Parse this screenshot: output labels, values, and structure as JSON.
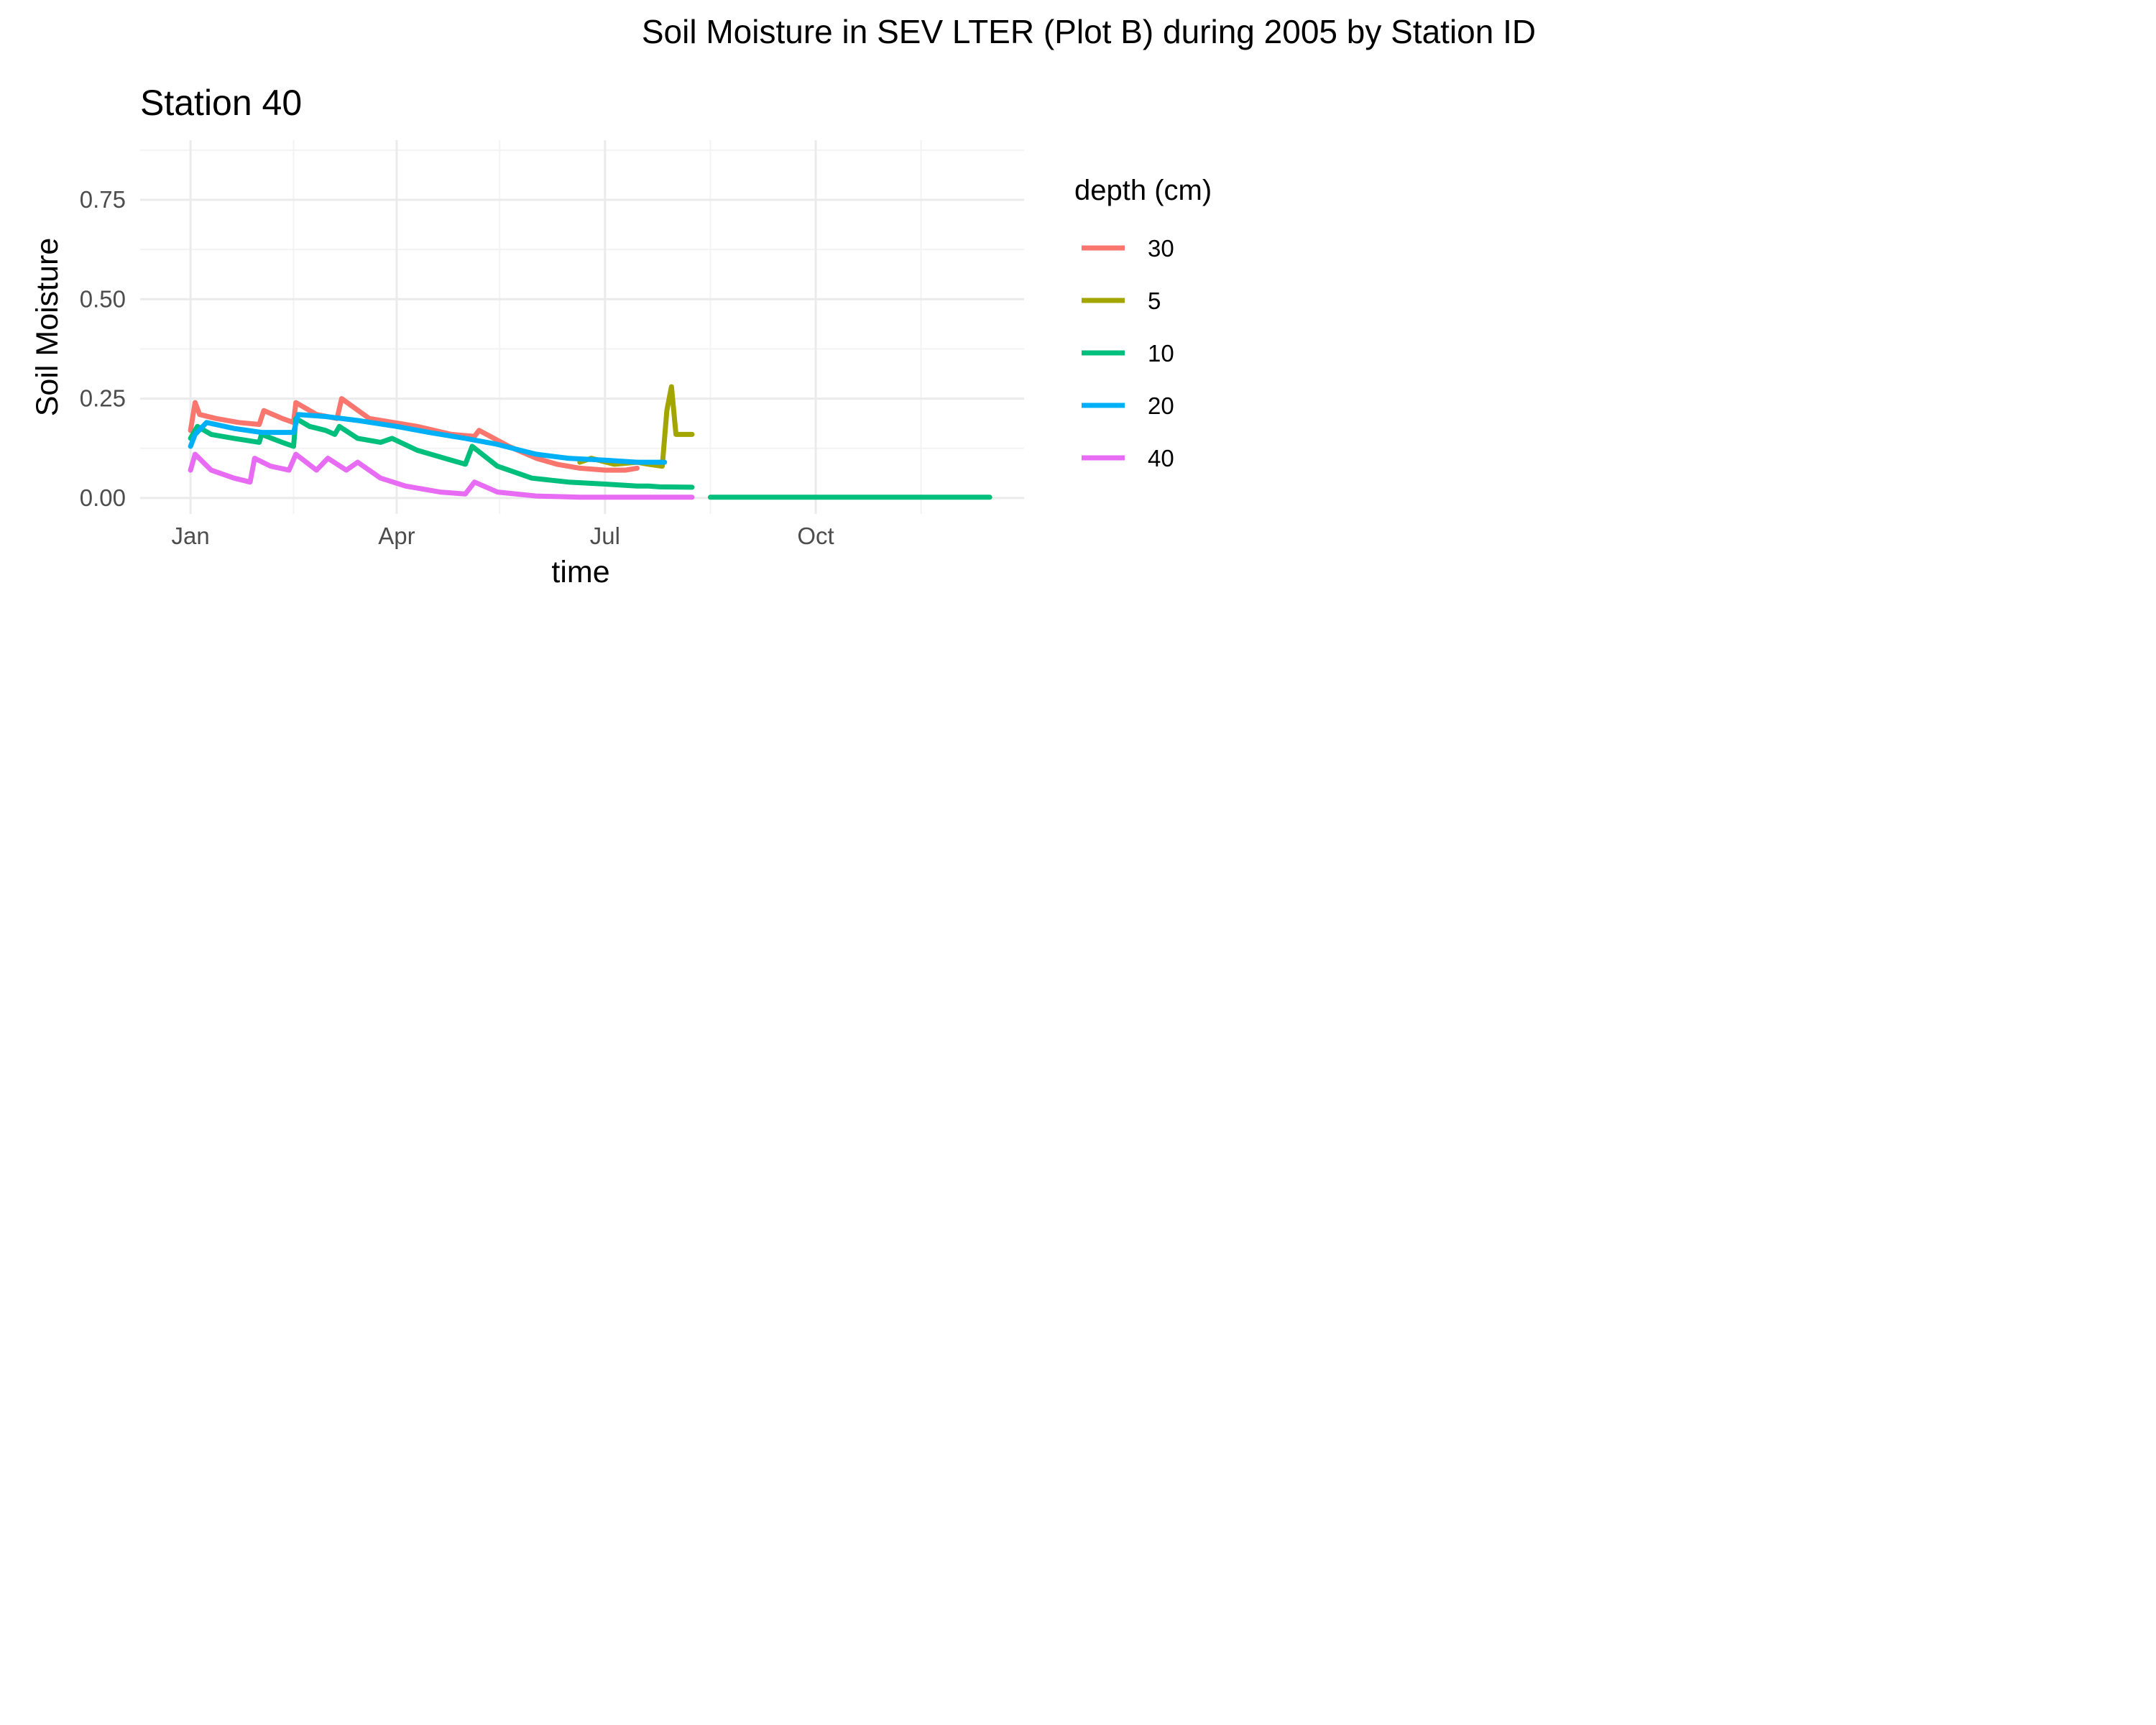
{
  "chart_data": {
    "type": "line",
    "title": "Soil Moisture in SEV LTER (Plot B) during 2005 by Station ID",
    "panel_title": "Station  40",
    "xlabel": "time",
    "ylabel": "Soil Moisture",
    "xlim": [
      "2004-12-10",
      "2005-12-31"
    ],
    "ylim": [
      -0.04,
      0.9
    ],
    "x_ticks": [
      {
        "label": "Jan",
        "date": "2005-01-01"
      },
      {
        "label": "Apr",
        "date": "2005-04-01"
      },
      {
        "label": "Jul",
        "date": "2005-07-01"
      },
      {
        "label": "Oct",
        "date": "2005-10-01"
      }
    ],
    "x_minor_ticks": [
      "2005-02-15",
      "2005-05-16",
      "2005-08-16",
      "2005-11-16"
    ],
    "y_ticks": [
      0.0,
      0.25,
      0.5,
      0.75
    ],
    "y_tick_labels": [
      "0.00",
      "0.25",
      "0.50",
      "0.75"
    ],
    "y_minor_ticks": [
      0.125,
      0.375,
      0.625,
      0.875
    ],
    "grid": true,
    "legend": {
      "title": "depth (cm)",
      "position": "right"
    },
    "series": [
      {
        "name": "30",
        "color": "#F8766D",
        "points": [
          [
            "2005-01-01",
            0.17
          ],
          [
            "2005-01-03",
            0.24
          ],
          [
            "2005-01-05",
            0.21
          ],
          [
            "2005-01-12",
            0.2
          ],
          [
            "2005-01-22",
            0.19
          ],
          [
            "2005-01-31",
            0.185
          ],
          [
            "2005-02-02",
            0.22
          ],
          [
            "2005-02-10",
            0.2
          ],
          [
            "2005-02-15",
            0.19
          ],
          [
            "2005-02-16",
            0.24
          ],
          [
            "2005-02-25",
            0.21
          ],
          [
            "2005-03-06",
            0.2
          ],
          [
            "2005-03-08",
            0.25
          ],
          [
            "2005-03-20",
            0.2
          ],
          [
            "2005-04-10",
            0.18
          ],
          [
            "2005-04-25",
            0.16
          ],
          [
            "2005-05-05",
            0.155
          ],
          [
            "2005-05-07",
            0.17
          ],
          [
            "2005-05-20",
            0.13
          ],
          [
            "2005-06-01",
            0.1
          ],
          [
            "2005-06-10",
            0.085
          ],
          [
            "2005-06-20",
            0.075
          ],
          [
            "2005-07-01",
            0.07
          ],
          [
            "2005-07-10",
            0.07
          ],
          [
            "2005-07-15",
            0.075
          ]
        ]
      },
      {
        "name": "5",
        "color": "#A3A500",
        "points": [
          [
            "2005-06-20",
            0.09
          ],
          [
            "2005-06-25",
            0.1
          ],
          [
            "2005-07-05",
            0.085
          ],
          [
            "2005-07-15",
            0.09
          ],
          [
            "2005-07-20",
            0.085
          ],
          [
            "2005-07-26",
            0.08
          ],
          [
            "2005-07-28",
            0.22
          ],
          [
            "2005-07-30",
            0.28
          ],
          [
            "2005-08-01",
            0.16
          ],
          [
            "2005-08-08",
            0.16
          ]
        ]
      },
      {
        "name": "10",
        "color": "#00BF7D",
        "points": [
          [
            "2005-01-01",
            0.15
          ],
          [
            "2005-01-04",
            0.18
          ],
          [
            "2005-01-10",
            0.16
          ],
          [
            "2005-01-20",
            0.15
          ],
          [
            "2005-01-31",
            0.14
          ],
          [
            "2005-02-01",
            0.16
          ],
          [
            "2005-02-10",
            0.14
          ],
          [
            "2005-02-15",
            0.13
          ],
          [
            "2005-02-16",
            0.2
          ],
          [
            "2005-02-22",
            0.18
          ],
          [
            "2005-03-01",
            0.17
          ],
          [
            "2005-03-05",
            0.16
          ],
          [
            "2005-03-07",
            0.18
          ],
          [
            "2005-03-15",
            0.15
          ],
          [
            "2005-03-25",
            0.14
          ],
          [
            "2005-03-30",
            0.15
          ],
          [
            "2005-04-10",
            0.12
          ],
          [
            "2005-04-22",
            0.1
          ],
          [
            "2005-05-01",
            0.085
          ],
          [
            "2005-05-04",
            0.13
          ],
          [
            "2005-05-15",
            0.08
          ],
          [
            "2005-05-30",
            0.05
          ],
          [
            "2005-06-15",
            0.04
          ],
          [
            "2005-07-01",
            0.035
          ],
          [
            "2005-07-15",
            0.03
          ],
          [
            "2005-07-20",
            0.03
          ],
          [
            "2005-07-25",
            0.028
          ],
          [
            "2005-08-08",
            0.027
          ]
        ]
      },
      {
        "name": "10",
        "color": "#00BF7D",
        "points": [
          [
            "2005-08-16",
            0.002
          ],
          [
            "2005-12-16",
            0.002
          ]
        ]
      },
      {
        "name": "20",
        "color": "#00B0F6",
        "points": [
          [
            "2005-01-01",
            0.13
          ],
          [
            "2005-01-03",
            0.16
          ],
          [
            "2005-01-08",
            0.19
          ],
          [
            "2005-01-20",
            0.175
          ],
          [
            "2005-02-01",
            0.165
          ],
          [
            "2005-02-15",
            0.165
          ],
          [
            "2005-02-17",
            0.21
          ],
          [
            "2005-03-01",
            0.205
          ],
          [
            "2005-03-15",
            0.195
          ],
          [
            "2005-04-01",
            0.18
          ],
          [
            "2005-04-15",
            0.165
          ],
          [
            "2005-05-01",
            0.15
          ],
          [
            "2005-05-15",
            0.135
          ],
          [
            "2005-05-25",
            0.12
          ],
          [
            "2005-06-01",
            0.11
          ],
          [
            "2005-06-15",
            0.1
          ],
          [
            "2005-07-01",
            0.095
          ],
          [
            "2005-07-15",
            0.09
          ],
          [
            "2005-07-27",
            0.09
          ]
        ]
      },
      {
        "name": "40",
        "color": "#E76BF3",
        "points": [
          [
            "2005-01-01",
            0.07
          ],
          [
            "2005-01-03",
            0.11
          ],
          [
            "2005-01-10",
            0.07
          ],
          [
            "2005-01-20",
            0.05
          ],
          [
            "2005-01-27",
            0.04
          ],
          [
            "2005-01-29",
            0.1
          ],
          [
            "2005-02-05",
            0.08
          ],
          [
            "2005-02-13",
            0.07
          ],
          [
            "2005-02-16",
            0.11
          ],
          [
            "2005-02-25",
            0.07
          ],
          [
            "2005-03-02",
            0.1
          ],
          [
            "2005-03-10",
            0.07
          ],
          [
            "2005-03-15",
            0.09
          ],
          [
            "2005-03-25",
            0.05
          ],
          [
            "2005-04-05",
            0.03
          ],
          [
            "2005-04-20",
            0.015
          ],
          [
            "2005-05-01",
            0.01
          ],
          [
            "2005-05-05",
            0.04
          ],
          [
            "2005-05-15",
            0.015
          ],
          [
            "2005-06-01",
            0.005
          ],
          [
            "2005-06-20",
            0.002
          ],
          [
            "2005-07-15",
            0.002
          ],
          [
            "2005-08-08",
            0.002
          ]
        ]
      }
    ],
    "legend_entries": [
      {
        "label": "30",
        "color": "#F8766D"
      },
      {
        "label": "5",
        "color": "#A3A500"
      },
      {
        "label": "10",
        "color": "#00BF7D"
      },
      {
        "label": "20",
        "color": "#00B0F6"
      },
      {
        "label": "40",
        "color": "#E76BF3"
      }
    ]
  }
}
